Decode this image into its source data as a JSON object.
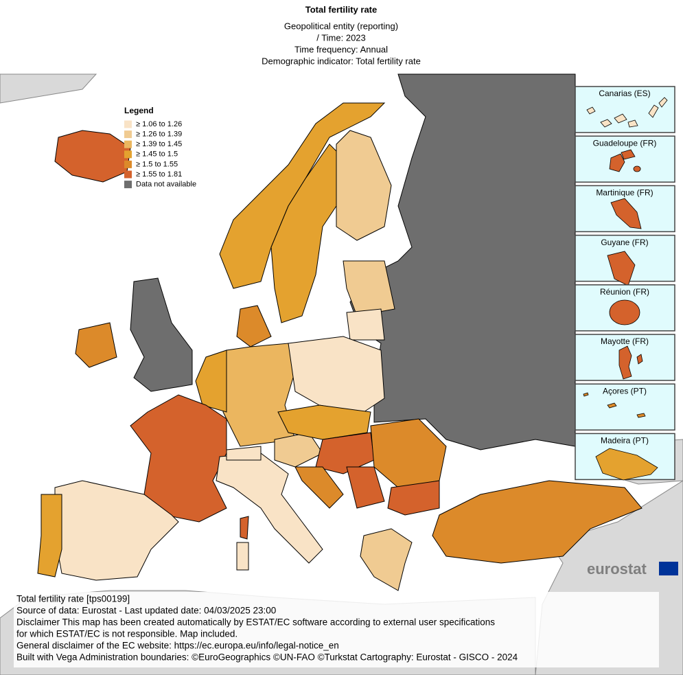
{
  "header": {
    "title": "Total fertility rate",
    "subtitle": [
      "Geopolitical entity (reporting)",
      "/ Time:  2023",
      "Time frequency:  Annual",
      "Demographic indicator:  Total fertility rate"
    ]
  },
  "legend": {
    "title": "Legend",
    "items": [
      {
        "label": "≥ 1.06 to 1.26",
        "color": "#f9e3c6"
      },
      {
        "label": "≥ 1.26 to 1.39",
        "color": "#f0cb92"
      },
      {
        "label": "≥ 1.39 to 1.45",
        "color": "#ebb65f"
      },
      {
        "label": "≥ 1.45 to 1.5",
        "color": "#e4a22f"
      },
      {
        "label": "≥ 1.5 to 1.55",
        "color": "#dc8a2a"
      },
      {
        "label": "≥ 1.55 to 1.81",
        "color": "#d4622c"
      },
      {
        "label": "Data not available",
        "color": "#6e6e6e"
      }
    ]
  },
  "insets": [
    "Canarias (ES)",
    "Guadeloupe (FR)",
    "Martinique (FR)",
    "Guyane (FR)",
    "Réunion (FR)",
    "Mayotte (FR)",
    "Açores (PT)",
    "Madeira (PT)"
  ],
  "logo": "eurostat",
  "footer": [
    "Total fertility rate [tps00199]",
    "Source of data: Eurostat - Last updated date: 04/03/2025 23:00",
    "Disclaimer This map has been created automatically by ESTAT/EC software according to external user specifications",
    "for which ESTAT/EC is not responsible. Map included.",
    "General disclaimer of the EC website: https://ec.europa.eu/info/legal-notice_en",
    "Built with Vega Administration boundaries: ©EuroGeographics ©UN-FAO ©Turkstat Cartography: Eurostat - GISCO - 2024"
  ]
}
